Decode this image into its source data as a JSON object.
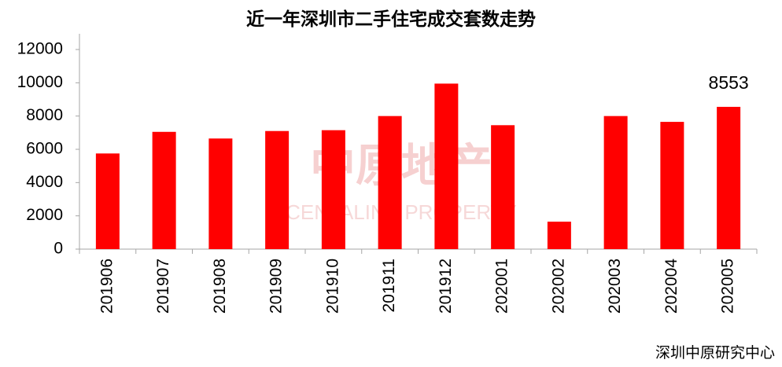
{
  "chart_data": {
    "type": "bar",
    "title": "近一年深圳市二手住宅成交套数走势",
    "categories": [
      "201906",
      "201907",
      "201908",
      "201909",
      "201910",
      "201911",
      "201912",
      "202001",
      "202002",
      "202003",
      "202004",
      "202005"
    ],
    "values": [
      5750,
      7050,
      6650,
      7100,
      7150,
      8000,
      9950,
      7450,
      1650,
      8000,
      7650,
      8553
    ],
    "value_labels": [
      null,
      null,
      null,
      null,
      null,
      null,
      null,
      null,
      null,
      null,
      null,
      "8553"
    ],
    "color": "#ff0000",
    "ylim": [
      0,
      12000
    ],
    "yticks": [
      0,
      2000,
      4000,
      6000,
      8000,
      10000,
      12000
    ],
    "grid": false,
    "source": "深圳中原研究中心",
    "watermark": [
      "中原地产",
      "CENTALINE PROPERTY"
    ]
  }
}
